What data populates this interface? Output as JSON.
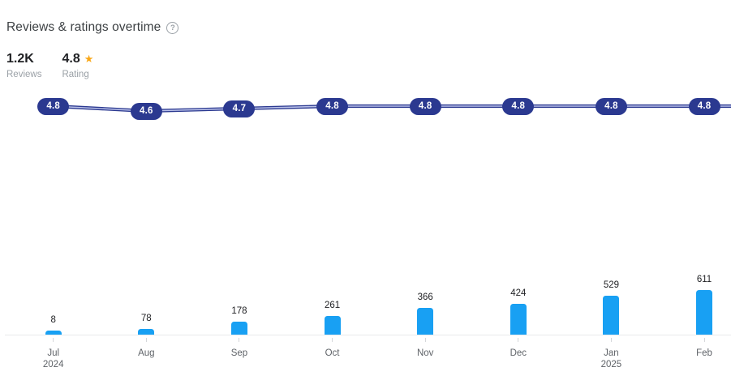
{
  "header": {
    "title": "Reviews & ratings overtime",
    "help_glyph": "?"
  },
  "stats": {
    "reviews": {
      "value": "1.2K",
      "label": "Reviews"
    },
    "rating": {
      "value": "4.8",
      "label": "Rating",
      "star_glyph": "★"
    }
  },
  "colors": {
    "line": "#2b3990",
    "line_core": "#b9c0e8",
    "pill_bg": "#2b3990",
    "pill_text": "#ffffff",
    "bar": "#18a0f3",
    "star": "#f9a716"
  },
  "chart_data": {
    "type": "line+bar",
    "title": "Reviews & ratings overtime",
    "categories": [
      "Jul 2024",
      "Aug",
      "Sep",
      "Oct",
      "Nov",
      "Dec",
      "Jan 2025",
      "Feb"
    ],
    "category_lines": [
      [
        "Jul",
        "2024"
      ],
      [
        "Aug"
      ],
      [
        "Sep"
      ],
      [
        "Oct"
      ],
      [
        "Nov"
      ],
      [
        "Dec"
      ],
      [
        "Jan",
        "2025"
      ],
      [
        "Feb"
      ]
    ],
    "series": [
      {
        "name": "Rating",
        "type": "line",
        "values": [
          4.8,
          4.6,
          4.7,
          4.8,
          4.8,
          4.8,
          4.8,
          4.8
        ]
      },
      {
        "name": "Reviews",
        "type": "bar",
        "values": [
          8,
          78,
          178,
          261,
          366,
          424,
          529,
          611
        ]
      }
    ],
    "legend_position": "none",
    "grid": false,
    "bar_axis_baseline": 0
  }
}
